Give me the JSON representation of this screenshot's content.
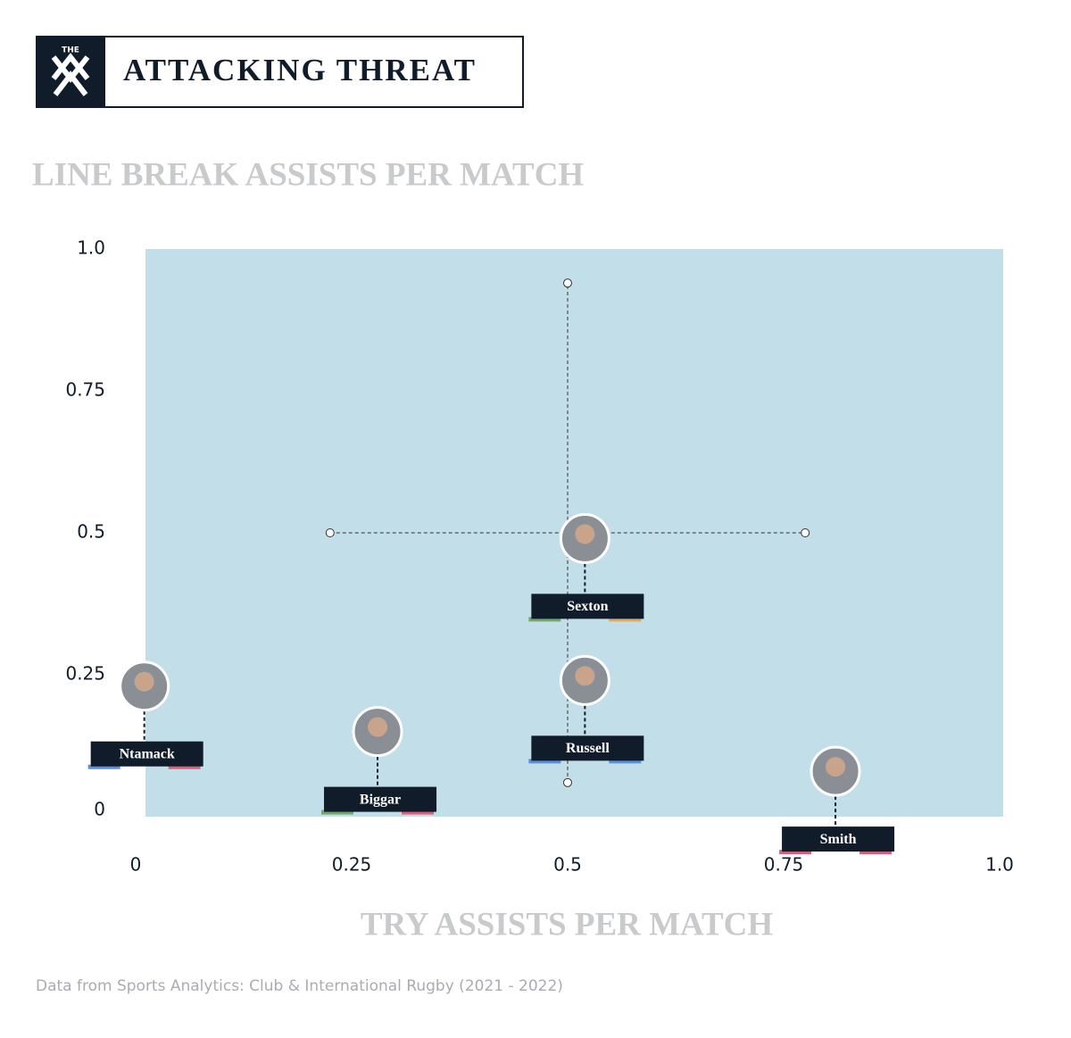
{
  "header": {
    "logo": "THE",
    "title": "ATTACKING THREAT"
  },
  "chart_data": {
    "type": "scatter",
    "y_label": "LINE BREAK ASSISTS PER MATCH",
    "x_label": "TRY ASSISTS PER MATCH",
    "labels": [
      "Sexton",
      "Ntamack",
      "Biggar",
      "Russell",
      "Smith"
    ],
    "x": [
      0.52,
      0.01,
      0.28,
      0.52,
      0.81
    ],
    "values": [
      0.49,
      0.23,
      0.15,
      0.24,
      0.08
    ],
    "label_colors": [
      [
        "#6ea96a",
        "#e0a85a"
      ],
      [
        "#5b8fd6",
        "#d9607a"
      ],
      [
        "#6ea96a",
        "#d9607a"
      ],
      [
        "#5b8fd6",
        "#5b8fd6"
      ],
      [
        "#d9607a",
        "#d9607a"
      ]
    ],
    "color": "#101c2a",
    "crosshair": {
      "x": 0.5,
      "y": 0.5,
      "x_range": [
        0.225,
        0.775
      ],
      "y_range": [
        0.06,
        0.94
      ]
    },
    "xlim": [
      0,
      1
    ],
    "ylim": [
      0,
      1
    ],
    "xticks": [
      0,
      0.25,
      0.5,
      0.75,
      {
        "value": 1,
        "label": "1.0"
      }
    ],
    "yticks": [
      0,
      0.25,
      0.5,
      0.75,
      {
        "value": 1,
        "label": "1.0"
      }
    ],
    "background": "#c2dee8"
  },
  "source": "Data from Sports Analytics: Club & International Rugby (2021 - 2022)"
}
